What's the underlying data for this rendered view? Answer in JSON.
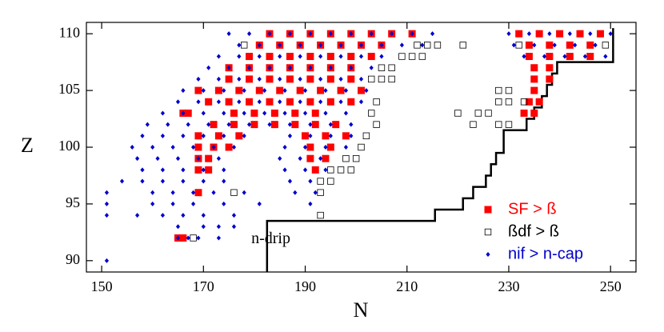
{
  "chart_data": {
    "type": "scatter",
    "xlabel": "N",
    "ylabel": "Z",
    "xlim": [
      147,
      255
    ],
    "ylim": [
      89,
      111
    ],
    "xticks": [
      150,
      170,
      190,
      210,
      230,
      250
    ],
    "yticks": [
      90,
      95,
      100,
      105,
      110
    ],
    "legend": "lower right",
    "series": [
      {
        "name": "SF > ß",
        "color": "#ff0000",
        "marker": "filled-square",
        "x": [
          183,
          187,
          191,
          195,
          199,
          203,
          207,
          211,
          232,
          236,
          240,
          244,
          248,
          181,
          185,
          189,
          193,
          197,
          201,
          205,
          234,
          238,
          242,
          246,
          179,
          183,
          187,
          191,
          195,
          199,
          203,
          234,
          238,
          242,
          246,
          175,
          179,
          183,
          187,
          191,
          195,
          199,
          235,
          238,
          175,
          179,
          183,
          187,
          191,
          195,
          199,
          235,
          238,
          169,
          173,
          177,
          181,
          185,
          189,
          193,
          197,
          201,
          235,
          171,
          175,
          179,
          183,
          187,
          191,
          195,
          199,
          234,
          236,
          166,
          167,
          176,
          180,
          184,
          188,
          192,
          233,
          235,
          172,
          176,
          180,
          184,
          188,
          192,
          196,
          169,
          173,
          177,
          190,
          194,
          198,
          169,
          172,
          175,
          191,
          195,
          169,
          171,
          191,
          194,
          169,
          171,
          192,
          169,
          165,
          166
        ],
        "values": [
          110,
          110,
          110,
          110,
          110,
          110,
          110,
          110,
          110,
          110,
          110,
          110,
          110,
          109,
          109,
          109,
          109,
          109,
          109,
          109,
          109,
          109,
          109,
          109,
          108,
          108,
          108,
          108,
          108,
          108,
          108,
          108,
          108,
          108,
          108,
          107,
          107,
          107,
          107,
          107,
          107,
          107,
          107,
          107,
          106,
          106,
          106,
          106,
          106,
          106,
          106,
          106,
          106,
          105,
          105,
          105,
          105,
          105,
          105,
          105,
          105,
          105,
          105,
          104,
          104,
          104,
          104,
          104,
          104,
          104,
          104,
          104,
          104,
          103,
          103,
          103,
          103,
          103,
          103,
          103,
          103,
          103,
          102,
          102,
          102,
          102,
          102,
          102,
          102,
          101,
          101,
          101,
          101,
          101,
          101,
          100,
          100,
          100,
          100,
          100,
          99,
          99,
          99,
          99,
          98,
          98,
          98,
          96,
          92,
          92
        ]
      },
      {
        "name": "ßdf > ß",
        "color": "#000000",
        "marker": "open-square",
        "x": [
          178,
          212,
          214,
          216,
          221,
          232,
          249,
          209,
          211,
          213,
          205,
          207,
          203,
          205,
          207,
          228,
          230,
          204,
          228,
          230,
          233,
          203,
          220,
          224,
          226,
          204,
          223,
          228,
          230,
          202,
          201,
          198,
          200,
          195,
          197,
          199,
          193,
          195,
          176,
          193,
          193,
          168
        ],
        "values": [
          109,
          109,
          109,
          109,
          109,
          109,
          109,
          108,
          108,
          108,
          107,
          107,
          106,
          106,
          106,
          105,
          105,
          104,
          104,
          104,
          104,
          103,
          103,
          103,
          103,
          102,
          102,
          102,
          102,
          101,
          100,
          99,
          99,
          98,
          98,
          98,
          97,
          97,
          96,
          96,
          94,
          92
        ]
      },
      {
        "name": "nif > n-cap",
        "color": "#0000cc",
        "marker": "diamond",
        "x": [
          175,
          179,
          183,
          187,
          191,
          195,
          199,
          203,
          207,
          211,
          215,
          230,
          234,
          238,
          242,
          246,
          250,
          177,
          181,
          185,
          189,
          193,
          197,
          201,
          205,
          209,
          213,
          231,
          235,
          239,
          243,
          247,
          173,
          177,
          181,
          185,
          189,
          193,
          197,
          201,
          205,
          233,
          237,
          241,
          245,
          249,
          171,
          175,
          179,
          183,
          187,
          191,
          195,
          199,
          203,
          169,
          173,
          177,
          181,
          185,
          189,
          193,
          197,
          201,
          166,
          170,
          174,
          178,
          182,
          186,
          190,
          194,
          198,
          202,
          165,
          169,
          173,
          177,
          181,
          185,
          189,
          193,
          197,
          201,
          162,
          166,
          170,
          174,
          178,
          182,
          186,
          190,
          194,
          198,
          159,
          163,
          167,
          171,
          175,
          179,
          183,
          187,
          191,
          195,
          199,
          158,
          162,
          166,
          170,
          174,
          178,
          187,
          191,
          195,
          199,
          156,
          160,
          164,
          168,
          172,
          176,
          186,
          190,
          194,
          198,
          157,
          161,
          165,
          169,
          173,
          185,
          189,
          193,
          158,
          162,
          166,
          170,
          174,
          186,
          190,
          194,
          154,
          158,
          162,
          166,
          170,
          174,
          187,
          191,
          151,
          160,
          164,
          168,
          172,
          178,
          188,
          192,
          151,
          160,
          164,
          168,
          174,
          181,
          191,
          151,
          157,
          162,
          166,
          170,
          176,
          165,
          170,
          173,
          176,
          165,
          167,
          169,
          173,
          151
        ],
        "values": [
          110,
          110,
          110,
          110,
          110,
          110,
          110,
          110,
          110,
          110,
          110,
          110,
          110,
          110,
          110,
          110,
          110,
          109,
          109,
          109,
          109,
          109,
          109,
          109,
          109,
          109,
          109,
          109,
          109,
          109,
          109,
          109,
          108,
          108,
          108,
          108,
          108,
          108,
          108,
          108,
          108,
          108,
          108,
          108,
          108,
          108,
          107,
          107,
          107,
          107,
          107,
          107,
          107,
          107,
          107,
          106,
          106,
          106,
          106,
          106,
          106,
          106,
          106,
          106,
          105,
          105,
          105,
          105,
          105,
          105,
          105,
          105,
          105,
          105,
          104,
          104,
          104,
          104,
          104,
          104,
          104,
          104,
          104,
          104,
          103,
          103,
          103,
          103,
          103,
          103,
          103,
          103,
          103,
          103,
          102,
          102,
          102,
          102,
          102,
          102,
          102,
          102,
          102,
          102,
          102,
          101,
          101,
          101,
          101,
          101,
          101,
          101,
          101,
          101,
          101,
          100,
          100,
          100,
          100,
          100,
          100,
          100,
          100,
          100,
          100,
          99,
          99,
          99,
          99,
          99,
          99,
          99,
          99,
          98,
          98,
          98,
          98,
          98,
          98,
          98,
          98,
          97,
          97,
          97,
          97,
          97,
          97,
          97,
          97,
          96,
          96,
          96,
          96,
          96,
          96,
          96,
          96,
          95,
          95,
          95,
          95,
          95,
          95,
          95,
          94,
          94,
          94,
          94,
          94,
          94,
          93,
          93,
          93,
          93,
          92,
          92,
          92,
          92,
          90
        ]
      }
    ],
    "drip_line": {
      "label": "n-drip",
      "color": "#000000",
      "x": [
        182.5,
        182.5,
        215.5,
        215.5,
        221,
        221,
        223,
        223,
        225.5,
        225.5,
        226.5,
        226.5,
        227.5,
        227.5,
        229,
        229,
        233.5,
        233.5,
        235,
        235,
        236.5,
        236.5,
        237.5,
        237.5,
        238.5,
        238.5,
        239.5,
        239.5,
        250.5,
        250.5
      ],
      "values": [
        89,
        93.5,
        93.5,
        94.5,
        94.5,
        95.5,
        95.5,
        96.5,
        96.5,
        97.5,
        97.5,
        98.5,
        98.5,
        99.5,
        99.5,
        101.5,
        101.5,
        102.5,
        102.5,
        103.5,
        103.5,
        104.5,
        104.5,
        105.5,
        105.5,
        106.5,
        106.5,
        107.5,
        107.5,
        110.5
      ]
    }
  }
}
